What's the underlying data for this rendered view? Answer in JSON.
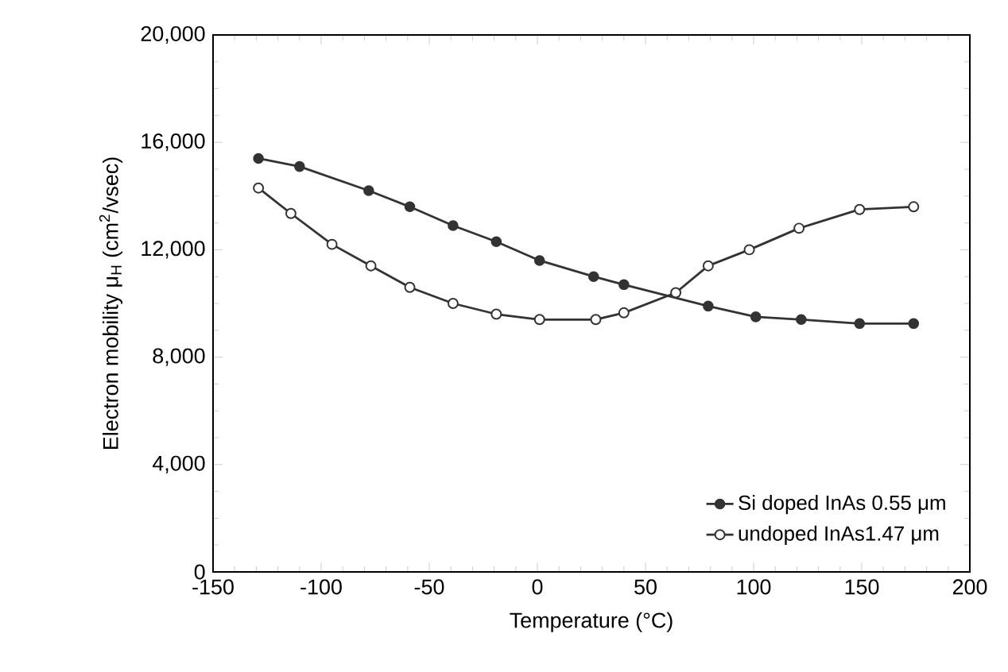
{
  "chart_data": {
    "type": "line",
    "xlabel": "Temperature (°C)",
    "ylabel": "Electron mobility μ$_{H}$ (cm$^{2}$/vsec)",
    "xlim": [
      -150,
      200
    ],
    "xticks": [
      -150,
      -100,
      -50,
      0,
      50,
      100,
      150,
      200
    ],
    "ylim": [
      0,
      20000
    ],
    "yticks": [
      0,
      {
        "value": 4000,
        "label": "4,000"
      },
      {
        "value": 8000,
        "label": "8,000"
      },
      {
        "value": 12000,
        "label": "12,000"
      },
      {
        "value": 16000,
        "label": "16,000"
      },
      {
        "value": 20000,
        "label": "20,000"
      }
    ],
    "legend": "bottom right",
    "grid": false,
    "line_style": "solid",
    "series": [
      {
        "name": "Si doped InAs 0.55 μm",
        "color": "#333333",
        "marker": "circle",
        "x": [
          -129,
          -110,
          -78,
          -59,
          -39,
          -19,
          1,
          26,
          40,
          79,
          101,
          122,
          149,
          174
        ],
        "values": [
          15400,
          15100,
          14200,
          13600,
          12900,
          12300,
          11600,
          11000,
          10700,
          9900,
          9500,
          9400,
          9250,
          9250
        ]
      },
      {
        "name": "undoped InAs1.47 μm",
        "color": "#333333",
        "marker": "circle-open",
        "x": [
          -129,
          -114,
          -95,
          -77,
          -59,
          -39,
          -19,
          1,
          27,
          40,
          64,
          79,
          98,
          121,
          149,
          174
        ],
        "values": [
          14300,
          13350,
          12200,
          11400,
          10600,
          10000,
          9600,
          9400,
          9400,
          9650,
          10400,
          11400,
          12000,
          12800,
          13500,
          13600
        ]
      }
    ]
  }
}
